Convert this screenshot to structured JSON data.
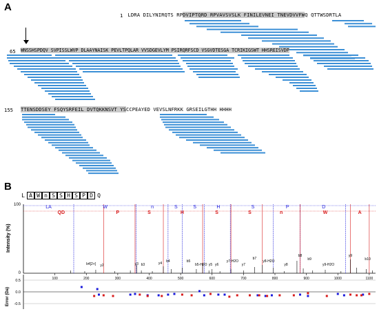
{
  "panelA": {
    "label": "A",
    "rows": [
      {
        "num": "1",
        "plain": " LDRA DILYNIRQTS RP",
        "hl": "DVIPTQRD RPVAVSVSLK FINILEVNEI TNEVDVVFW",
        "tail": "Q QTTWSDRTLA"
      },
      {
        "num": "65",
        "plain": "",
        "hl": "WNSSHSPDQV SVPISSLWVP DLAAYNAISK PEVLTPQLAR VVSDGEVLYM PSIRQRFSCD VSGVDTESGA TCRIKIGSWT HHSREISVDP",
        "tail": ""
      },
      {
        "num": "155",
        "plain": "",
        "hl": "TTENSDDSEY FSQYSRFEIL DVTQKKNSVT YS",
        "tail": "CCPEAYED VEVSLNFRKK GRSEILGTHH HHHH"
      }
    ]
  },
  "panelB": {
    "label": "B",
    "sequence": [
      "L",
      "A",
      "W",
      "n",
      "S",
      "S",
      "H",
      "S",
      "P",
      "D",
      "Q"
    ],
    "ylabel_top": "Intensity (%)",
    "ylabel_bottom": "Error (Da)",
    "y_ticks": [
      "100",
      "0"
    ],
    "error_ticks": [
      "0.5",
      "0.0",
      "-0.5"
    ],
    "x_ticks": [
      "100",
      "200",
      "300",
      "400",
      "500",
      "600",
      "700",
      "800",
      "900",
      "1000",
      "1100"
    ],
    "top_blue_labels": [
      "LA",
      "W",
      "n",
      "S",
      "S",
      "H",
      "S",
      "P",
      "D"
    ],
    "top_red_labels": [
      "QD",
      "P",
      "S",
      "H",
      "S",
      "S",
      "n",
      "W",
      "A"
    ],
    "peak_labels": [
      "b4[2+]",
      "y2",
      "y3",
      "b3",
      "y4",
      "b4",
      "b5",
      "b5-H2O",
      "y5",
      "y6",
      "y7-H2O",
      "y7",
      "b7",
      "y8-H2O",
      "y8",
      "b8",
      "b9",
      "y9-H2O",
      "y9",
      "b10"
    ]
  },
  "colors": {
    "blue": "#3b8fd6",
    "bluefrag": "#1a1adb",
    "red": "#d81b1b",
    "gray": "#c9c9c9"
  }
}
